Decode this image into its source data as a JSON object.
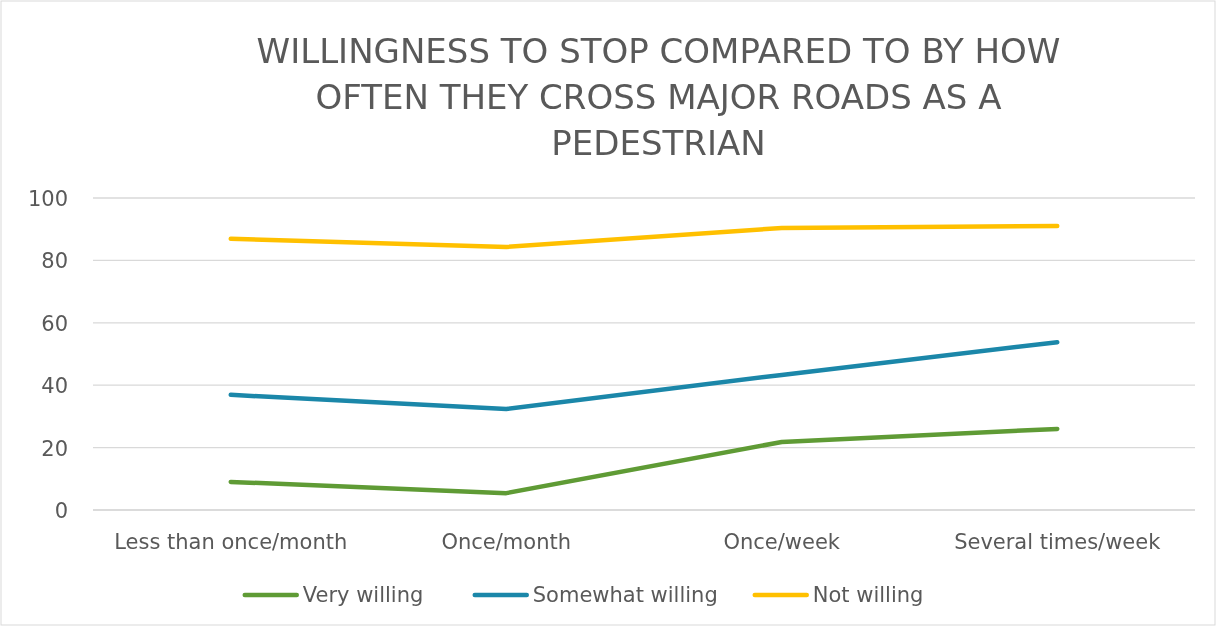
{
  "chart_data": {
    "type": "line",
    "title": "WILLINGNESS TO STOP COMPARED TO BY HOW OFTEN THEY CROSS MAJOR ROADS AS A PEDESTRIAN",
    "categories": [
      "Less than once/month",
      "Once/month",
      "Once/week",
      "Several times/week"
    ],
    "series": [
      {
        "name": "Very willing",
        "color": "#5f9b35",
        "values": [
          9,
          5.4,
          21.8,
          26
        ]
      },
      {
        "name": "Somewhat willing",
        "color": "#1b87a9",
        "values": [
          36.9,
          32.4,
          43.3,
          53.8
        ]
      },
      {
        "name": "Not willing",
        "color": "#ffc000",
        "values": [
          86.9,
          84.3,
          90.4,
          91
        ]
      }
    ],
    "ylim": [
      0,
      100
    ],
    "yticks": [
      0,
      20,
      40,
      60,
      80,
      100
    ],
    "grid": "y",
    "legend": "bottom",
    "marker": "none",
    "line_style": "solid"
  }
}
